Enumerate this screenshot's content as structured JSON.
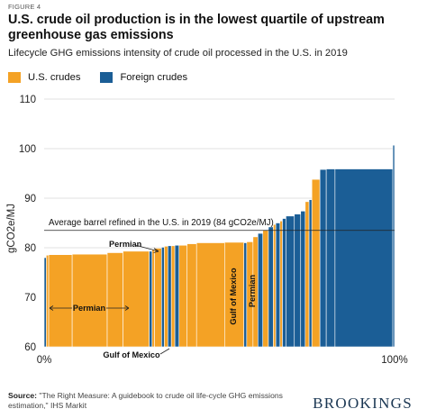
{
  "figure_label": "FIGURE 4",
  "title": "U.S. crude oil production is in the lowest quartile of upstream greenhouse gas emissions",
  "subtitle": "Lifecycle GHG emissions intensity of crude oil processed in the U.S. in 2019",
  "legend": [
    {
      "label": "U.S. crudes",
      "color": "#f4a225"
    },
    {
      "label": "Foreign crudes",
      "color": "#1b5e96"
    }
  ],
  "source_label": "Source:",
  "source_text": "\"The Right Measure: A guidebook to crude oil life-cycle GHG emissions estimation,\" IHS Markit",
  "brand": "BROOKINGS",
  "chart_data": {
    "type": "bar",
    "ylabel": "gCO2e/MJ",
    "ylim": [
      60,
      110
    ],
    "yticks": [
      60,
      70,
      80,
      90,
      100,
      110
    ],
    "xlim": [
      0,
      100
    ],
    "xticks": [
      {
        "value": 0,
        "label": "0%"
      },
      {
        "value": 100,
        "label": "100%"
      }
    ],
    "average_line": {
      "value": 83.5,
      "label": "Average barrel refined in the U.S. in 2019 (84 gCO2e/MJ)"
    },
    "colors": {
      "us": "#f4a225",
      "foreign": "#1b5e96"
    },
    "bars": [
      {
        "x0": 0.0,
        "x1": 0.6,
        "value": 78.0,
        "origin": "foreign"
      },
      {
        "x0": 0.6,
        "x1": 1.3,
        "value": 78.5,
        "origin": "us"
      },
      {
        "x0": 1.3,
        "x1": 8.0,
        "value": 78.6,
        "origin": "us"
      },
      {
        "x0": 8.0,
        "x1": 18.0,
        "value": 78.7,
        "origin": "us"
      },
      {
        "x0": 18.0,
        "x1": 22.5,
        "value": 79.0,
        "origin": "us"
      },
      {
        "x0": 22.5,
        "x1": 30.0,
        "value": 79.3,
        "origin": "us"
      },
      {
        "x0": 30.0,
        "x1": 30.8,
        "value": 79.3,
        "origin": "foreign"
      },
      {
        "x0": 30.8,
        "x1": 31.5,
        "value": 79.6,
        "origin": "us"
      },
      {
        "x0": 31.5,
        "x1": 33.5,
        "value": 79.9,
        "origin": "us"
      },
      {
        "x0": 33.5,
        "x1": 34.3,
        "value": 80.1,
        "origin": "foreign"
      },
      {
        "x0": 34.3,
        "x1": 35.3,
        "value": 80.3,
        "origin": "us"
      },
      {
        "x0": 35.3,
        "x1": 36.3,
        "value": 80.4,
        "origin": "foreign"
      },
      {
        "x0": 36.3,
        "x1": 37.3,
        "value": 80.4,
        "origin": "us"
      },
      {
        "x0": 37.3,
        "x1": 38.5,
        "value": 80.5,
        "origin": "foreign"
      },
      {
        "x0": 38.5,
        "x1": 40.8,
        "value": 80.5,
        "origin": "us"
      },
      {
        "x0": 40.8,
        "x1": 43.5,
        "value": 80.8,
        "origin": "us"
      },
      {
        "x0": 43.5,
        "x1": 51.5,
        "value": 81.0,
        "origin": "us"
      },
      {
        "x0": 51.5,
        "x1": 57.0,
        "value": 81.1,
        "origin": "us"
      },
      {
        "x0": 57.0,
        "x1": 57.8,
        "value": 81.0,
        "origin": "foreign"
      },
      {
        "x0": 57.8,
        "x1": 59.6,
        "value": 81.2,
        "origin": "us"
      },
      {
        "x0": 59.6,
        "x1": 61.0,
        "value": 82.2,
        "origin": "us"
      },
      {
        "x0": 61.0,
        "x1": 62.4,
        "value": 82.9,
        "origin": "foreign"
      },
      {
        "x0": 62.4,
        "x1": 64.0,
        "value": 83.5,
        "origin": "us"
      },
      {
        "x0": 64.0,
        "x1": 65.4,
        "value": 84.2,
        "origin": "foreign"
      },
      {
        "x0": 65.4,
        "x1": 66.1,
        "value": 84.7,
        "origin": "us"
      },
      {
        "x0": 66.1,
        "x1": 67.3,
        "value": 85.0,
        "origin": "foreign"
      },
      {
        "x0": 67.3,
        "x1": 68.0,
        "value": 85.4,
        "origin": "us"
      },
      {
        "x0": 68.0,
        "x1": 69.0,
        "value": 85.9,
        "origin": "foreign"
      },
      {
        "x0": 69.0,
        "x1": 71.4,
        "value": 86.4,
        "origin": "foreign"
      },
      {
        "x0": 71.4,
        "x1": 73.2,
        "value": 86.8,
        "origin": "foreign"
      },
      {
        "x0": 73.2,
        "x1": 74.5,
        "value": 87.4,
        "origin": "foreign"
      },
      {
        "x0": 74.5,
        "x1": 75.6,
        "value": 89.3,
        "origin": "us"
      },
      {
        "x0": 75.6,
        "x1": 76.4,
        "value": 89.7,
        "origin": "foreign"
      },
      {
        "x0": 76.4,
        "x1": 78.7,
        "value": 93.8,
        "origin": "us"
      },
      {
        "x0": 78.7,
        "x1": 80.5,
        "value": 95.8,
        "origin": "foreign"
      },
      {
        "x0": 80.5,
        "x1": 83.0,
        "value": 95.9,
        "origin": "foreign"
      },
      {
        "x0": 83.0,
        "x1": 99.5,
        "value": 95.9,
        "origin": "foreign"
      },
      {
        "x0": 99.5,
        "x1": 100.0,
        "value": 100.7,
        "origin": "foreign"
      }
    ],
    "annotations": {
      "permian_top": "Permian",
      "permian_left": "Permian",
      "gulf_bottom": "Gulf of Mexico",
      "gulf_vertical": "Gulf of Mexico",
      "permian_vertical": "Permian"
    }
  }
}
